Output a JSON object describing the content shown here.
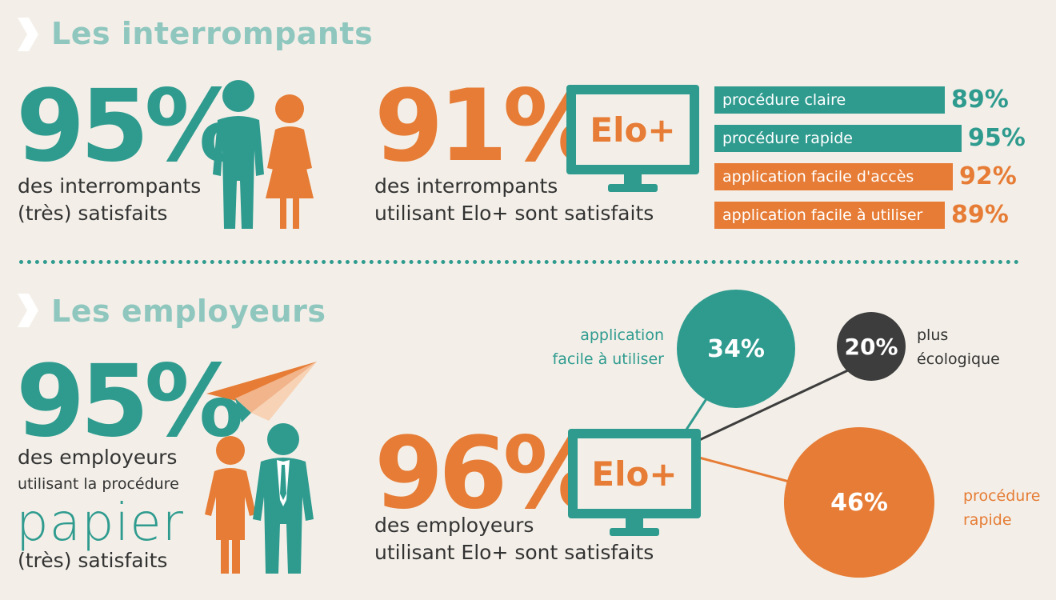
{
  "section1": {
    "title": "Les interrompants",
    "stat1": {
      "value": "95%",
      "line1": "des interrompants",
      "line2": "(très) satisfaits"
    },
    "stat2": {
      "value": "91%",
      "line1": "des interrompants",
      "line2": "utilisant Elo+ sont satisfaits",
      "monitor_label": "Elo+"
    },
    "bars": [
      {
        "label": "procédure claire",
        "value": 89,
        "display": "89%",
        "color": "#2f9b8f"
      },
      {
        "label": "procédure rapide",
        "value": 95,
        "display": "95%",
        "color": "#2f9b8f"
      },
      {
        "label": "application facile d'accès",
        "value": 92,
        "display": "92%",
        "color": "#e67c35"
      },
      {
        "label": "application facile à utiliser",
        "value": 89,
        "display": "89%",
        "color": "#e67c35"
      }
    ]
  },
  "section2": {
    "title": "Les employeurs",
    "stat1": {
      "value": "95%",
      "line1": "des employeurs",
      "line2": "utilisant la procédure",
      "line3": "papier",
      "line4": "(très) satisfaits"
    },
    "stat2": {
      "value": "96%",
      "line1": "des employeurs",
      "line2": "utilisant Elo+ sont satisfaits",
      "monitor_label": "Elo+"
    },
    "bubbles": [
      {
        "value": "34%",
        "label1": "application",
        "label2": "facile à utiliser",
        "color": "#2f9b8f"
      },
      {
        "value": "20%",
        "label1": "plus",
        "label2": "écologique",
        "color": "#3d3d3d"
      },
      {
        "value": "46%",
        "label1": "procédure",
        "label2": "rapide",
        "color": "#e67c35"
      }
    ]
  },
  "colors": {
    "teal": "#2f9b8f",
    "orange": "#e67c35",
    "light_teal": "#8fc7bf",
    "dark": "#3d3d3d",
    "background": "#f3efe8"
  }
}
